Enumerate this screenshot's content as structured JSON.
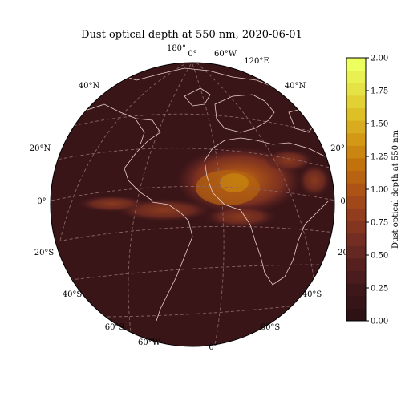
{
  "title": "Dust optical depth at 550 nm, 2020-06-01",
  "colors": {
    "background_ocean": "#3a1518",
    "coastline": "#e8d0cc",
    "gridline": "#8a6464",
    "colormap": [
      "#2e1115",
      "#3d171a",
      "#56201f",
      "#732d22",
      "#923d1e",
      "#ad5315",
      "#c2720c",
      "#d39816",
      "#ddbf26",
      "#e4e244",
      "#ecff5e"
    ]
  },
  "graticule_labels": [
    {
      "text": "180°",
      "pos": "top"
    },
    {
      "text": "0°",
      "pos": "top"
    },
    {
      "text": "60°W",
      "pos": "top"
    },
    {
      "text": "120°E",
      "pos": "top"
    },
    {
      "text": "40°N",
      "pos": "left"
    },
    {
      "text": "40°N",
      "pos": "right"
    },
    {
      "text": "20°N",
      "pos": "left"
    },
    {
      "text": "20°",
      "pos": "right"
    },
    {
      "text": "0°",
      "pos": "left"
    },
    {
      "text": "0°",
      "pos": "right"
    },
    {
      "text": "20°S",
      "pos": "left"
    },
    {
      "text": "20°",
      "pos": "right"
    },
    {
      "text": "40°S",
      "pos": "left"
    },
    {
      "text": "40°S",
      "pos": "right"
    },
    {
      "text": "60°S",
      "pos": "bottom-left"
    },
    {
      "text": "60°S",
      "pos": "bottom-right"
    },
    {
      "text": "60°W",
      "pos": "bottom"
    },
    {
      "text": "0°",
      "pos": "bottom"
    }
  ],
  "colorbar": {
    "label": "Dust optical depth at 550 nm",
    "range": [
      0.0,
      2.0
    ],
    "ticks": [
      "0.00",
      "0.25",
      "0.50",
      "0.75",
      "1.00",
      "1.25",
      "1.50",
      "1.75",
      "2.00"
    ],
    "levels": 21
  }
}
